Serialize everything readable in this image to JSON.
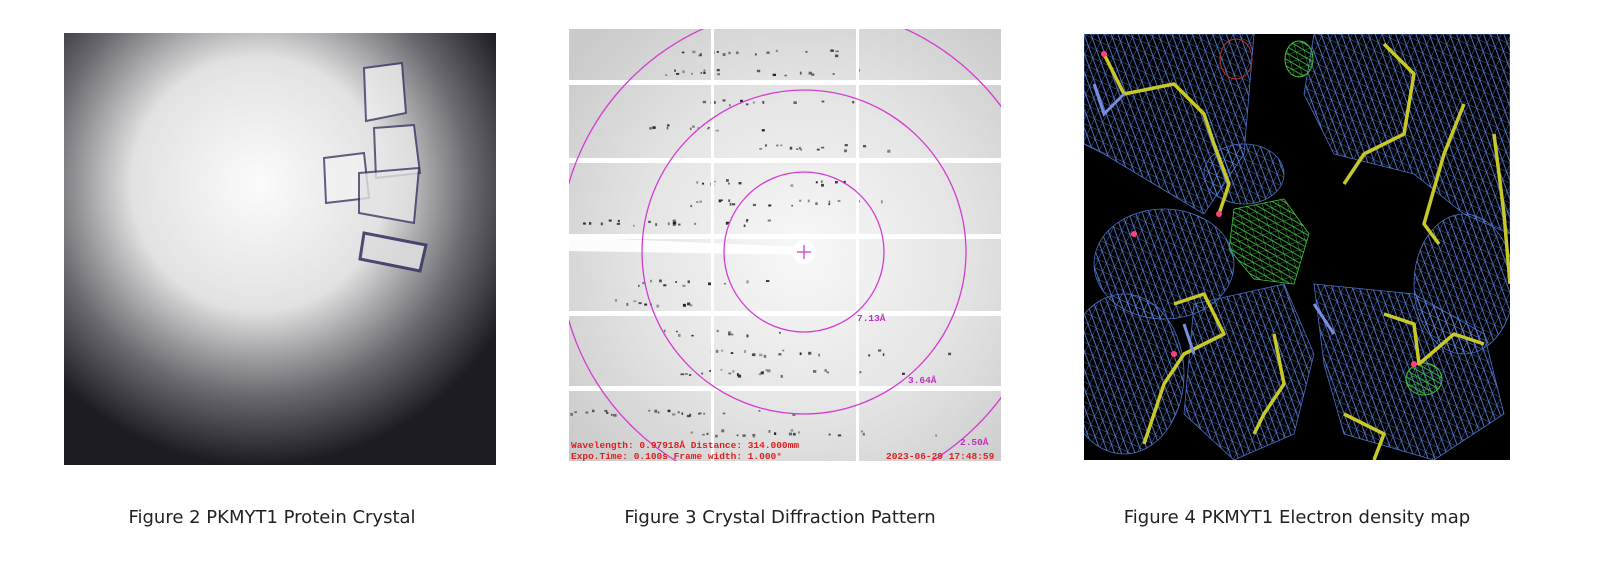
{
  "figures": [
    {
      "caption": "Figure 2 PKMYT1 Protein Crystal"
    },
    {
      "caption": "Figure 3 Crystal Diffraction Pattern",
      "ring_labels": [
        "7.13Å",
        "3.64Å",
        "2.50Å"
      ],
      "info_line_1": "Wavelength: 0.97918Å Distance: 314.000mm",
      "info_line_2": "Expo.Time: 0.100s Frame width: 1.000°",
      "timestamp": "2023-06-29 17:48:59"
    },
    {
      "caption": "Figure 4 PKMYT1 Electron density map"
    }
  ]
}
